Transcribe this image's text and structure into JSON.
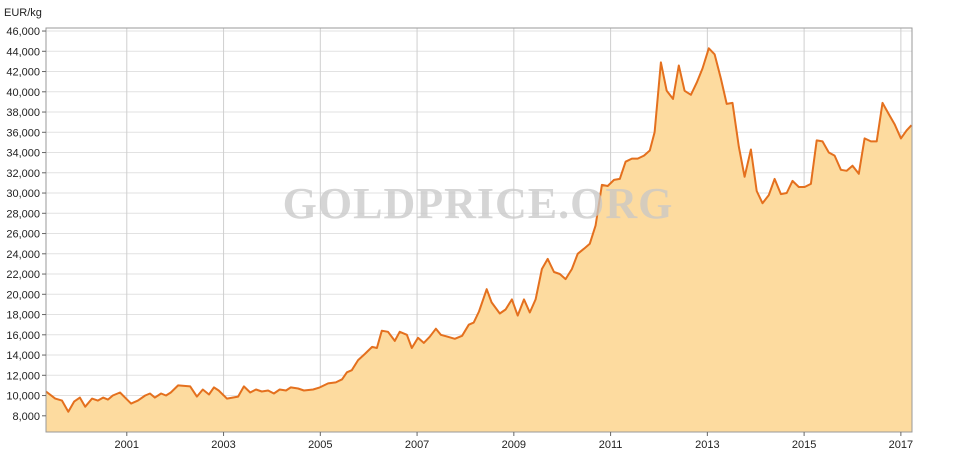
{
  "chart_data": {
    "type": "area",
    "y_axis_label": "EUR/kg",
    "watermark": "GOLDPRICE.ORG",
    "line_color": "#e4701e",
    "fill_color": "#fddb9f",
    "grid": true,
    "xlim": [
      1999.33,
      2017.23
    ],
    "xticks": [
      2001,
      2003,
      2005,
      2007,
      2009,
      2011,
      2013,
      2015,
      2017
    ],
    "ylim": [
      6400,
      46300
    ],
    "yticks": [
      {
        "value": 8000,
        "label": "8,000"
      },
      {
        "value": 10000,
        "label": "10,000"
      },
      {
        "value": 12000,
        "label": "12,000"
      },
      {
        "value": 14000,
        "label": "14,000"
      },
      {
        "value": 16000,
        "label": "16,000"
      },
      {
        "value": 18000,
        "label": "18,000"
      },
      {
        "value": 20000,
        "label": "20,000"
      },
      {
        "value": 22000,
        "label": "22,000"
      },
      {
        "value": 24000,
        "label": "24,000"
      },
      {
        "value": 26000,
        "label": "26,000"
      },
      {
        "value": 28000,
        "label": "28,000"
      },
      {
        "value": 30000,
        "label": "30,000"
      },
      {
        "value": 32000,
        "label": "32,000"
      },
      {
        "value": 34000,
        "label": "34,000"
      },
      {
        "value": 36000,
        "label": "36,000"
      },
      {
        "value": 38000,
        "label": "38,000"
      },
      {
        "value": 40000,
        "label": "40,000"
      },
      {
        "value": 42000,
        "label": "42,000"
      },
      {
        "value": 44000,
        "label": "44,000"
      },
      {
        "value": 46000,
        "label": "46,000"
      }
    ],
    "x": [
      1999.33,
      1999.52,
      1999.66,
      1999.79,
      1999.91,
      2000.03,
      2000.14,
      2000.28,
      2000.4,
      2000.51,
      2000.61,
      2000.71,
      2000.86,
      2001.09,
      2001.23,
      2001.38,
      2001.48,
      2001.58,
      2001.71,
      2001.81,
      2001.91,
      2002.06,
      2002.31,
      2002.45,
      2002.57,
      2002.7,
      2002.8,
      2002.9,
      2003.07,
      2003.3,
      2003.42,
      2003.55,
      2003.67,
      2003.79,
      2003.92,
      2004.04,
      2004.16,
      2004.29,
      2004.39,
      2004.54,
      2004.66,
      2004.85,
      2004.99,
      2005.16,
      2005.32,
      2005.45,
      2005.55,
      2005.65,
      2005.78,
      2005.92,
      2006.07,
      2006.17,
      2006.27,
      2006.4,
      2006.54,
      2006.64,
      2006.79,
      2006.89,
      2007.02,
      2007.14,
      2007.26,
      2007.39,
      2007.49,
      2007.64,
      2007.78,
      2007.93,
      2008.07,
      2008.17,
      2008.28,
      2008.44,
      2008.54,
      2008.71,
      2008.83,
      2008.96,
      2009.08,
      2009.21,
      2009.33,
      2009.45,
      2009.58,
      2009.7,
      2009.83,
      2009.95,
      2010.07,
      2010.2,
      2010.32,
      2010.45,
      2010.57,
      2010.69,
      2010.82,
      2010.94,
      2011.07,
      2011.19,
      2011.31,
      2011.44,
      2011.56,
      2011.69,
      2011.81,
      2011.91,
      2012.04,
      2012.16,
      2012.29,
      2012.41,
      2012.53,
      2012.66,
      2012.78,
      2012.9,
      2013.03,
      2013.15,
      2013.28,
      2013.4,
      2013.52,
      2013.65,
      2013.77,
      2013.9,
      2014.02,
      2014.14,
      2014.27,
      2014.39,
      2014.52,
      2014.64,
      2014.76,
      2014.89,
      2015.01,
      2015.14,
      2015.26,
      2015.38,
      2015.51,
      2015.63,
      2015.76,
      2015.88,
      2016.0,
      2016.13,
      2016.25,
      2016.38,
      2016.5,
      2016.62,
      2016.75,
      2016.87,
      2017.0,
      2017.12,
      2017.22
    ],
    "values": [
      10400,
      9700,
      9500,
      8400,
      9400,
      9800,
      8900,
      9700,
      9500,
      9800,
      9600,
      10000,
      10300,
      9200,
      9500,
      10000,
      10200,
      9800,
      10200,
      10000,
      10300,
      11000,
      10900,
      9900,
      10600,
      10100,
      10800,
      10500,
      9700,
      9900,
      10900,
      10300,
      10600,
      10400,
      10500,
      10200,
      10600,
      10500,
      10800,
      10700,
      10500,
      10600,
      10800,
      11200,
      11300,
      11600,
      12300,
      12500,
      13500,
      14100,
      14800,
      14700,
      16400,
      16300,
      15400,
      16300,
      16000,
      14700,
      15700,
      15200,
      15800,
      16600,
      16000,
      15800,
      15600,
      15900,
      17000,
      17200,
      18300,
      20500,
      19200,
      18100,
      18500,
      19500,
      17900,
      19500,
      18200,
      19500,
      22500,
      23500,
      22200,
      22000,
      21500,
      22500,
      24000,
      24500,
      25000,
      26800,
      30800,
      30700,
      31300,
      31400,
      33100,
      33400,
      33400,
      33700,
      34200,
      36000,
      42900,
      40100,
      39300,
      42600,
      40100,
      39700,
      40900,
      42300,
      44300,
      43700,
      41300,
      38800,
      38900,
      34600,
      31600,
      34300,
      30200,
      29000,
      29800,
      31400,
      29900,
      30000,
      31200,
      30600,
      30600,
      30900,
      35200,
      35100,
      34000,
      33700,
      32300,
      32200,
      32700,
      31900,
      35400,
      35100,
      35100,
      38900,
      37800,
      36800,
      35400,
      36200,
      36700
    ]
  }
}
